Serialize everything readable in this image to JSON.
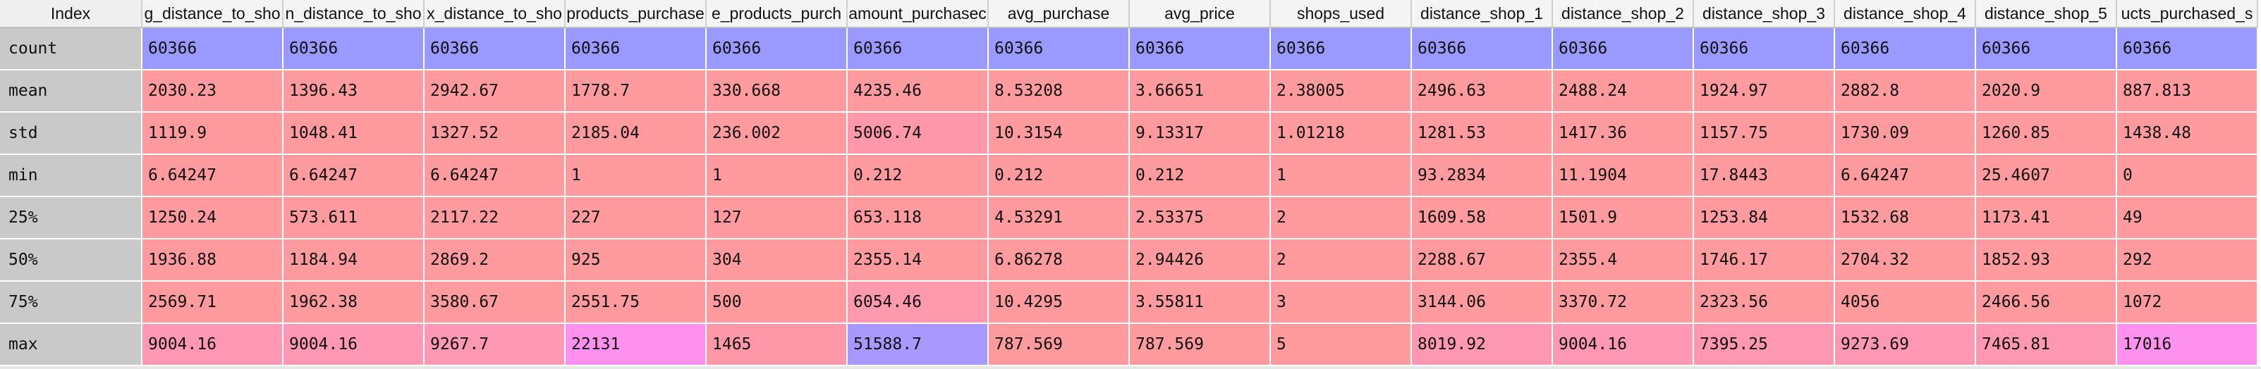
{
  "table": {
    "index_header": "Index",
    "columns": [
      "g_distance_to_sho",
      "n_distance_to_sho",
      "x_distance_to_sho",
      "products_purchase",
      "e_products_purch",
      "amount_purchasec",
      "avg_purchase",
      "avg_price",
      "shops_used",
      "distance_shop_1",
      "distance_shop_2",
      "distance_shop_3",
      "distance_shop_4",
      "distance_shop_5",
      "ucts_purchased_s"
    ],
    "rows": [
      {
        "label": "count",
        "values": [
          "60366",
          "60366",
          "60366",
          "60366",
          "60366",
          "60366",
          "60366",
          "60366",
          "60366",
          "60366",
          "60366",
          "60366",
          "60366",
          "60366",
          "60366"
        ]
      },
      {
        "label": "mean",
        "values": [
          "2030.23",
          "1396.43",
          "2942.67",
          "1778.7",
          "330.668",
          "4235.46",
          "8.53208",
          "3.66651",
          "2.38005",
          "2496.63",
          "2488.24",
          "1924.97",
          "2882.8",
          "2020.9",
          "887.813"
        ]
      },
      {
        "label": "std",
        "values": [
          "1119.9",
          "1048.41",
          "1327.52",
          "2185.04",
          "236.002",
          "5006.74",
          "10.3154",
          "9.13317",
          "1.01218",
          "1281.53",
          "1417.36",
          "1157.75",
          "1730.09",
          "1260.85",
          "1438.48"
        ]
      },
      {
        "label": "min",
        "values": [
          "6.64247",
          "6.64247",
          "6.64247",
          "1",
          "1",
          "0.212",
          "0.212",
          "0.212",
          "1",
          "93.2834",
          "11.1904",
          "17.8443",
          "6.64247",
          "25.4607",
          "0"
        ]
      },
      {
        "label": "25%",
        "values": [
          "1250.24",
          "573.611",
          "2117.22",
          "227",
          "127",
          "653.118",
          "4.53291",
          "2.53375",
          "2",
          "1609.58",
          "1501.9",
          "1253.84",
          "1532.68",
          "1173.41",
          "49"
        ]
      },
      {
        "label": "50%",
        "values": [
          "1936.88",
          "1184.94",
          "2869.2",
          "925",
          "304",
          "2355.14",
          "6.86278",
          "2.94426",
          "2",
          "2288.67",
          "2355.4",
          "1746.17",
          "2704.32",
          "1852.93",
          "292"
        ]
      },
      {
        "label": "75%",
        "values": [
          "2569.71",
          "1962.38",
          "3580.67",
          "2551.75",
          "500",
          "6054.46",
          "10.4295",
          "3.55811",
          "3",
          "3144.06",
          "3370.72",
          "2323.56",
          "4056",
          "2466.56",
          "1072"
        ]
      },
      {
        "label": "max",
        "values": [
          "9004.16",
          "9004.16",
          "9267.7",
          "22131",
          "1465",
          "51588.7",
          "787.569",
          "787.569",
          "5",
          "8019.92",
          "9004.16",
          "7395.25",
          "9273.69",
          "7465.81",
          "17016"
        ]
      }
    ]
  },
  "colors": {
    "count_row": "#9999ff",
    "default_cell": "#ff9a9e",
    "row_label_bg": "#c9c9c9",
    "header_bg": "#f4f4f4",
    "overrides": {
      "2.5": "#ff98aa",
      "6.5": "#ff99ae",
      "7.0": "#ff98b4",
      "7.1": "#ff98b4",
      "7.2": "#ff98b2",
      "7.3": "#ff91ee",
      "7.4": "#ff98a8",
      "7.5": "#a999ff",
      "7.9": "#ff98b0",
      "7.10": "#ff98b4",
      "7.11": "#ff98b0",
      "7.12": "#ff98b4",
      "7.13": "#ff98b0",
      "7.14": "#ff91ee"
    }
  }
}
